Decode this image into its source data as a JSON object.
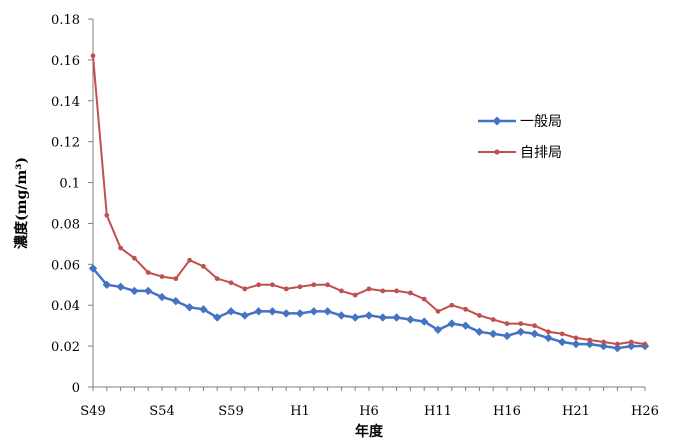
{
  "chart_data": {
    "type": "line",
    "xlabel": "年度",
    "ylabel": "濃度(mg/m³)",
    "ylim": [
      0,
      0.18
    ],
    "yticks": [
      0,
      0.02,
      0.04,
      0.06,
      0.08,
      0.1,
      0.12,
      0.14,
      0.16,
      0.18
    ],
    "ytick_labels": [
      "0",
      "0.02",
      "0.04",
      "0.06",
      "0.08",
      "0.1",
      "0.12",
      "0.14",
      "0.16",
      "0.18"
    ],
    "x": [
      "S49",
      "S50",
      "S51",
      "S52",
      "S53",
      "S54",
      "S55",
      "S56",
      "S57",
      "S58",
      "S59",
      "S60",
      "S61",
      "S62",
      "S63",
      "H1",
      "H2",
      "H3",
      "H4",
      "H5",
      "H6",
      "H7",
      "H8",
      "H9",
      "H10",
      "H11",
      "H12",
      "H13",
      "H14",
      "H15",
      "H16",
      "H17",
      "H18",
      "H19",
      "H20",
      "H21",
      "H22",
      "H23",
      "H24",
      "H25",
      "H26"
    ],
    "xtick_labels": [
      "S49",
      "S54",
      "S59",
      "H1",
      "H6",
      "H11",
      "H16",
      "H21",
      "H26"
    ],
    "legend_position": "right",
    "grid": false,
    "series": [
      {
        "name": "一般局",
        "color": "#4472C4",
        "marker": "diamond",
        "values": [
          0.058,
          0.05,
          0.049,
          0.047,
          0.047,
          0.044,
          0.042,
          0.039,
          0.038,
          0.034,
          0.037,
          0.035,
          0.037,
          0.037,
          0.036,
          0.036,
          0.037,
          0.037,
          0.035,
          0.034,
          0.035,
          0.034,
          0.034,
          0.033,
          0.032,
          0.028,
          0.031,
          0.03,
          0.027,
          0.026,
          0.025,
          0.027,
          0.026,
          0.024,
          0.022,
          0.021,
          0.021,
          0.02,
          0.019,
          0.02,
          0.02
        ]
      },
      {
        "name": "自排局",
        "color": "#C0504D",
        "marker": "dot",
        "values": [
          0.162,
          0.084,
          0.068,
          0.063,
          0.056,
          0.054,
          0.053,
          0.062,
          0.059,
          0.053,
          0.051,
          0.048,
          0.05,
          0.05,
          0.048,
          0.049,
          0.05,
          0.05,
          0.047,
          0.045,
          0.048,
          0.047,
          0.047,
          0.046,
          0.043,
          0.037,
          0.04,
          0.038,
          0.035,
          0.033,
          0.031,
          0.031,
          0.03,
          0.027,
          0.026,
          0.024,
          0.023,
          0.022,
          0.021,
          0.022,
          0.021
        ]
      }
    ]
  }
}
